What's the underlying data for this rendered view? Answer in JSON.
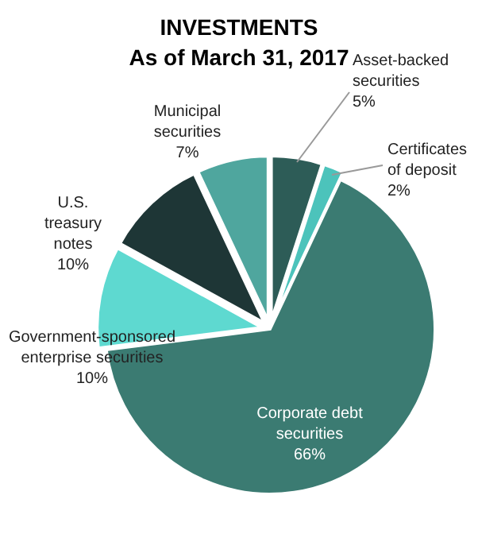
{
  "chart_data": {
    "type": "pie",
    "title": "INVESTMENTS",
    "subtitle": "As of March 31, 2017",
    "categories": [
      "Asset-backed securities",
      "Certificates of deposit",
      "Corporate debt securities",
      "Government-sponsored enterprise securities",
      "U.S. treasury notes",
      "Municipal securities"
    ],
    "values": [
      5,
      2,
      66,
      10,
      10,
      7
    ],
    "colors": [
      "#2d5c57",
      "#4cc3bb",
      "#3b7b72",
      "#5ed9d0",
      "#1e3636",
      "#4fa69e"
    ],
    "value_labels": [
      "5%",
      "2%",
      "66%",
      "10%",
      "10%",
      "7%"
    ]
  }
}
